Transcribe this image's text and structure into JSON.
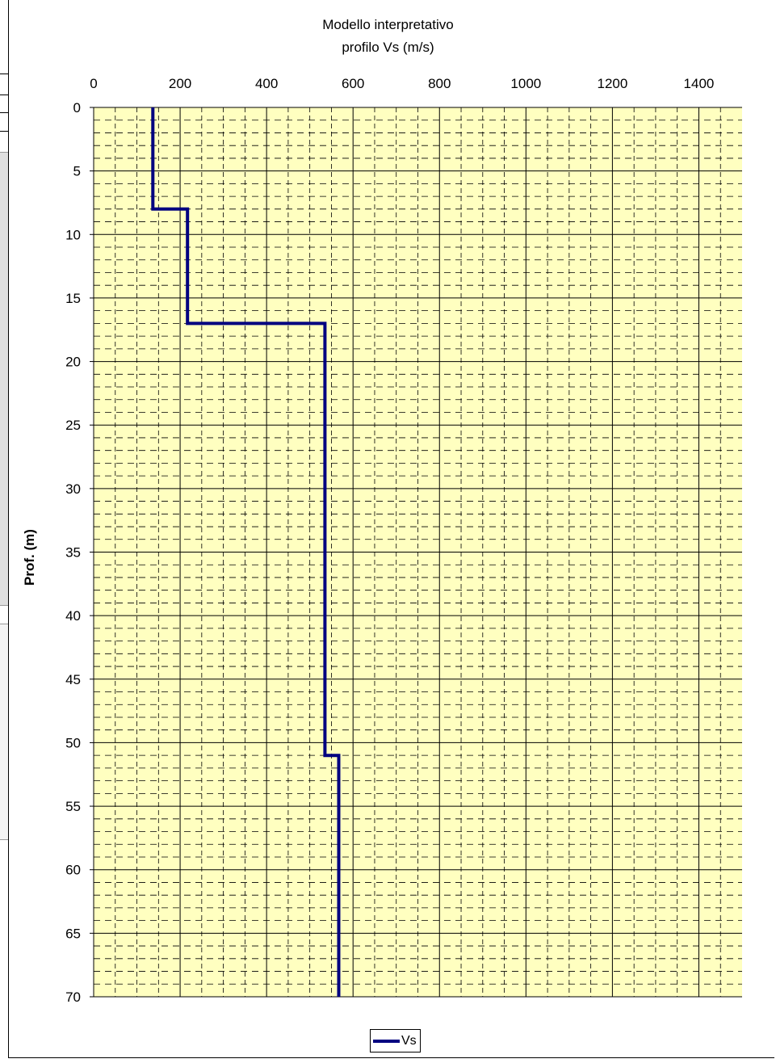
{
  "chart_data": {
    "type": "line",
    "title": "Modello interpretativo",
    "subtitle": "profilo Vs (m/s)",
    "xlabel": "",
    "ylabel": "Prof. (m)",
    "xlim": [
      0,
      1500
    ],
    "ylim": [
      0,
      70
    ],
    "y_inverted": true,
    "x_axis_position": "top",
    "x_ticks": [
      0,
      200,
      400,
      600,
      800,
      1000,
      1200,
      1400
    ],
    "y_ticks": [
      0,
      5,
      10,
      15,
      20,
      25,
      30,
      35,
      40,
      45,
      50,
      55,
      60,
      65,
      70
    ],
    "grid": true,
    "plot_background": "#ffffc0",
    "legend_position": "bottom-center",
    "series": [
      {
        "name": "Vs",
        "color": "#000080",
        "points": [
          {
            "x": 137,
            "y": 0
          },
          {
            "x": 137,
            "y": 8
          },
          {
            "x": 217,
            "y": 8
          },
          {
            "x": 217,
            "y": 17
          },
          {
            "x": 535,
            "y": 17
          },
          {
            "x": 535,
            "y": 51
          },
          {
            "x": 567,
            "y": 51
          },
          {
            "x": 567,
            "y": 70
          }
        ]
      }
    ]
  }
}
